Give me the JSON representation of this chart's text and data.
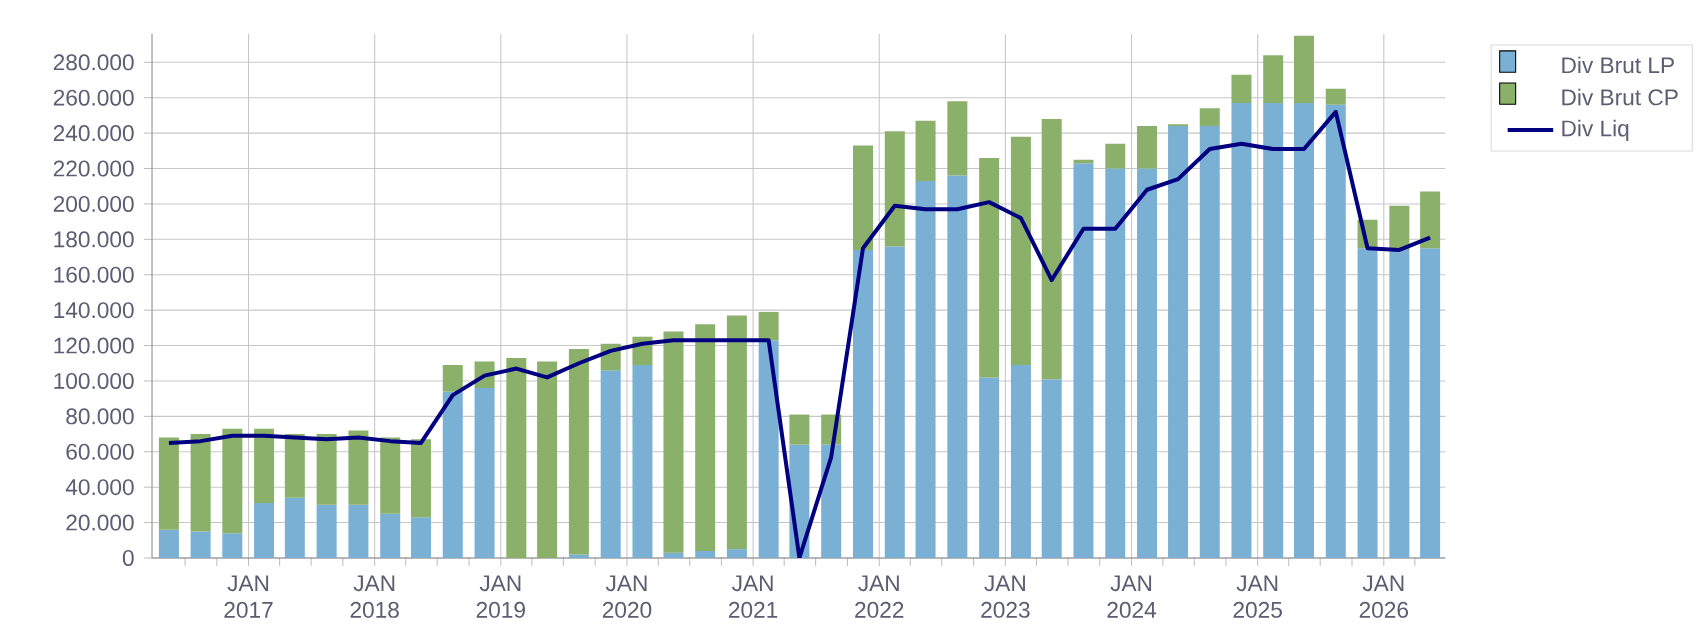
{
  "chart_data": {
    "type": "bar",
    "stacked": true,
    "x": [
      "2016-05-15",
      "2016-08-15",
      "2016-11-15",
      "2017-02-15",
      "2017-05-15",
      "2017-08-15",
      "2017-11-15",
      "2018-02-15",
      "2018-05-15",
      "2018-08-15",
      "2018-11-15",
      "2019-02-15",
      "2019-05-15",
      "2019-08-15",
      "2019-11-15",
      "2020-02-15",
      "2020-05-15",
      "2020-08-15",
      "2020-11-15",
      "2021-02-15",
      "2021-05-15",
      "2021-08-15",
      "2021-11-15",
      "2022-02-15",
      "2022-05-15",
      "2022-08-15",
      "2022-11-15",
      "2023-02-15",
      "2023-05-15",
      "2023-08-15",
      "2023-11-15",
      "2024-02-15",
      "2024-05-15",
      "2024-08-15",
      "2024-11-15",
      "2025-02-15",
      "2025-05-15",
      "2025-08-15",
      "2025-11-15",
      "2026-02-15",
      "2026-05-15"
    ],
    "series": [
      {
        "name": "Div Brut LP",
        "color": "#7ab0d4",
        "values": [
          16000,
          15000,
          14000,
          31000,
          34000,
          30000,
          30000,
          25000,
          23000,
          94000,
          96000,
          0,
          0,
          2000,
          106000,
          109000,
          3000,
          4000,
          5000,
          123000,
          64000,
          64000,
          174000,
          176000,
          213000,
          216000,
          102000,
          109000,
          101000,
          223000,
          220000,
          220000,
          244000,
          244000,
          257000,
          257000,
          257000,
          256000,
          175000,
          174000,
          175000
        ]
      },
      {
        "name": "Div Brut CP",
        "color": "#8ab06a",
        "values": [
          52000,
          55000,
          59000,
          42000,
          36000,
          40000,
          42000,
          43000,
          44000,
          15000,
          15000,
          113000,
          111000,
          116000,
          15000,
          16000,
          125000,
          128000,
          132000,
          16000,
          17000,
          17000,
          59000,
          65000,
          34000,
          42000,
          124000,
          129000,
          147000,
          2000,
          14000,
          24000,
          1000,
          10000,
          16000,
          27000,
          38000,
          9000,
          16000,
          25000,
          32000
        ]
      },
      {
        "name": "Div Liq",
        "type": "line",
        "color": "#000080",
        "line_style": "solid",
        "marker": "none",
        "values": [
          65000,
          66000,
          69000,
          69000,
          68000,
          67000,
          68000,
          66000,
          65000,
          92000,
          103000,
          107000,
          102000,
          110000,
          117000,
          121000,
          123000,
          123000,
          123000,
          123000,
          0,
          57000,
          175000,
          199000,
          197000,
          197000,
          201000,
          192000,
          157000,
          186000,
          186000,
          208000,
          214000,
          231000,
          234000,
          231000,
          231000,
          252000,
          175000,
          174000,
          181000
        ]
      }
    ],
    "xlim": [
      "2016-03-27",
      "2026-06-28"
    ],
    "xticks": [
      {
        "value": "2016-07-01",
        "label": null
      },
      {
        "value": "2016-10-01",
        "label": null
      },
      {
        "value": "2017-01-01",
        "label": "JAN 2017"
      },
      {
        "value": "2017-04-01",
        "label": null
      },
      {
        "value": "2017-07-01",
        "label": null
      },
      {
        "value": "2017-10-01",
        "label": null
      },
      {
        "value": "2018-01-01",
        "label": "JAN 2018"
      },
      {
        "value": "2018-04-01",
        "label": null
      },
      {
        "value": "2018-07-01",
        "label": null
      },
      {
        "value": "2018-10-01",
        "label": null
      },
      {
        "value": "2019-01-01",
        "label": "JAN 2019"
      },
      {
        "value": "2019-04-01",
        "label": null
      },
      {
        "value": "2019-07-01",
        "label": null
      },
      {
        "value": "2019-10-01",
        "label": null
      },
      {
        "value": "2020-01-01",
        "label": "JAN 2020"
      },
      {
        "value": "2020-04-01",
        "label": null
      },
      {
        "value": "2020-07-01",
        "label": null
      },
      {
        "value": "2020-10-01",
        "label": null
      },
      {
        "value": "2021-01-01",
        "label": "JAN 2021"
      },
      {
        "value": "2021-04-01",
        "label": null
      },
      {
        "value": "2021-07-01",
        "label": null
      },
      {
        "value": "2021-10-01",
        "label": null
      },
      {
        "value": "2022-01-01",
        "label": "JAN 2022"
      },
      {
        "value": "2022-04-01",
        "label": null
      },
      {
        "value": "2022-07-01",
        "label": null
      },
      {
        "value": "2022-10-01",
        "label": null
      },
      {
        "value": "2023-01-01",
        "label": "JAN 2023"
      },
      {
        "value": "2023-04-01",
        "label": null
      },
      {
        "value": "2023-07-01",
        "label": null
      },
      {
        "value": "2023-10-01",
        "label": null
      },
      {
        "value": "2024-01-01",
        "label": "JAN 2024"
      },
      {
        "value": "2024-04-01",
        "label": null
      },
      {
        "value": "2024-07-01",
        "label": null
      },
      {
        "value": "2024-10-01",
        "label": null
      },
      {
        "value": "2025-01-01",
        "label": "JAN 2025"
      },
      {
        "value": "2025-04-01",
        "label": null
      },
      {
        "value": "2025-07-01",
        "label": null
      },
      {
        "value": "2025-10-01",
        "label": null
      },
      {
        "value": "2026-01-01",
        "label": "JAN 2026"
      },
      {
        "value": "2026-04-01",
        "label": null
      }
    ],
    "ylim": [
      0,
      296000
    ],
    "yticks": [
      0,
      {
        "value": 20000,
        "label": "20.000"
      },
      {
        "value": 40000,
        "label": "40.000"
      },
      {
        "value": 60000,
        "label": "60.000"
      },
      {
        "value": 80000,
        "label": "80.000"
      },
      {
        "value": 100000,
        "label": "100.000"
      },
      {
        "value": 120000,
        "label": "120.000"
      },
      {
        "value": 140000,
        "label": "140.000"
      },
      {
        "value": 160000,
        "label": "160.000"
      },
      {
        "value": 180000,
        "label": "180.000"
      },
      {
        "value": 200000,
        "label": "200.000"
      },
      {
        "value": 220000,
        "label": "220.000"
      },
      {
        "value": 240000,
        "label": "240.000"
      },
      {
        "value": 260000,
        "label": "260.000"
      },
      {
        "value": 280000,
        "label": "280.000"
      }
    ],
    "grid": true,
    "legend": "top right"
  }
}
